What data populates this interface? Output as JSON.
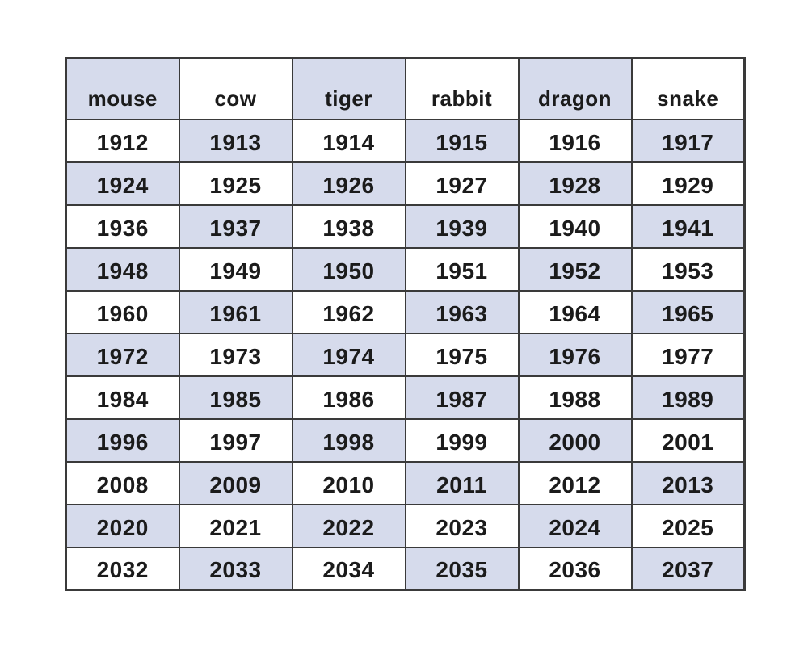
{
  "page": {
    "background": "#ffffff"
  },
  "chart_data": {
    "type": "table",
    "columns": [
      "mouse",
      "cow",
      "tiger",
      "rabbit",
      "dragon",
      "snake"
    ],
    "rows": [
      [
        "1912",
        "1913",
        "1914",
        "1915",
        "1916",
        "1917"
      ],
      [
        "1924",
        "1925",
        "1926",
        "1927",
        "1928",
        "1929"
      ],
      [
        "1936",
        "1937",
        "1938",
        "1939",
        "1940",
        "1941"
      ],
      [
        "1948",
        "1949",
        "1950",
        "1951",
        "1952",
        "1953"
      ],
      [
        "1960",
        "1961",
        "1962",
        "1963",
        "1964",
        "1965"
      ],
      [
        "1972",
        "1973",
        "1974",
        "1975",
        "1976",
        "1977"
      ],
      [
        "1984",
        "1985",
        "1986",
        "1987",
        "1988",
        "1989"
      ],
      [
        "1996",
        "1997",
        "1998",
        "1999",
        "2000",
        "2001"
      ],
      [
        "2008",
        "2009",
        "2010",
        "2011",
        "2012",
        "2013"
      ],
      [
        "2020",
        "2021",
        "2022",
        "2023",
        "2024",
        "2025"
      ],
      [
        "2032",
        "2033",
        "2034",
        "2035",
        "2036",
        "2037"
      ]
    ],
    "layout": {
      "grid": true,
      "checkerboard_rule": "cell is shaded blue when (rowIndex + colIndex) is even, header row is rowIndex 0",
      "header_position": "top"
    }
  },
  "colors": {
    "cell_fill_blue": "#d6dbec",
    "cell_fill_white": "#ffffff",
    "border": "#3a3a3a",
    "text": "#1b1b1b",
    "page_background": "#ffffff"
  }
}
